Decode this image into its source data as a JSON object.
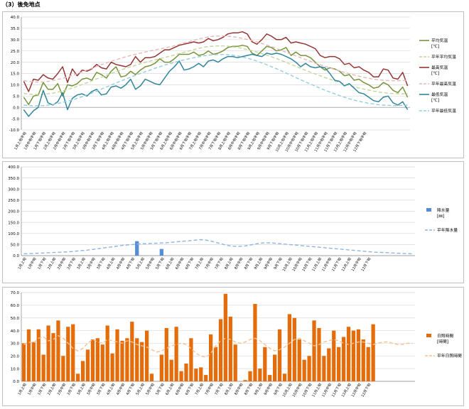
{
  "page": {
    "heading": "（3）後免地点"
  },
  "colors": {
    "avg": "#77933c",
    "avg_normal": "#c3d69b",
    "max": "#943634",
    "max_normal": "#e6b9b8",
    "min": "#31859c",
    "min_normal": "#93cddd",
    "precip_bar": "#558ed5",
    "precip_normal": "#8eb4e3",
    "sun_bar": "#e46c0a",
    "sun_normal": "#fac090",
    "grid": "#d9d9d9"
  },
  "periods": [
    "1月上旬",
    "1月中旬",
    "1月下旬",
    "2月上旬",
    "2月中旬",
    "2月下旬",
    "3月上旬",
    "3月中旬",
    "3月下旬",
    "4月上旬",
    "4月中旬",
    "4月下旬",
    "5月上旬",
    "5月中旬",
    "5月下旬",
    "6月上旬",
    "6月中旬",
    "6月下旬",
    "7月上旬",
    "7月中旬",
    "7月下旬",
    "8月上旬",
    "8月中旬",
    "8月下旬",
    "9月上旬",
    "9月中旬",
    "9月下旬",
    "10月上旬",
    "10月中旬",
    "10月下旬",
    "11月上旬",
    "11月中旬",
    "11月下旬",
    "12月上旬",
    "12月中旬",
    "12月下旬"
  ],
  "chart_data": [
    {
      "type": "line",
      "x_unit": "半旬",
      "ylim": [
        -10,
        40
      ],
      "yticks": [
        -10,
        -5,
        0,
        5,
        10,
        15,
        20,
        25,
        30,
        35,
        40
      ],
      "ytick_labels": [
        "-10.0",
        "-5.0",
        "0.0",
        "5.0",
        "10.0",
        "15.0",
        "20.0",
        "25.0",
        "30.0",
        "35.0",
        "40.0"
      ],
      "grid": true,
      "legend_position": "right",
      "series": [
        {
          "name": "平均気温",
          "unit": "[℃]",
          "style": "solid",
          "color_key": "avg",
          "values": [
            4.5,
            1.2,
            5.0,
            5.5,
            11.0,
            8.0,
            8.0,
            10.5,
            5.0,
            10.0,
            9.5,
            10.5,
            12.5,
            13.0,
            12.0,
            15.5,
            14.5,
            13.0,
            16.0,
            18.0,
            13.5,
            14.0,
            16.0,
            14.5,
            16.5,
            18.0,
            18.5,
            19.5,
            21.5,
            20.0,
            20.0,
            21.5,
            23.5,
            23.5,
            23.5,
            24.5,
            23.0,
            23.5,
            25.0,
            23.5,
            24.0,
            25.0,
            26.5,
            27.0,
            27.0,
            27.5,
            27.0,
            24.0,
            23.0,
            25.0,
            27.0,
            26.5,
            25.0,
            25.5,
            26.5,
            23.0,
            24.5,
            23.0,
            23.0,
            22.0,
            20.0,
            18.0,
            16.5,
            17.5,
            17.0,
            16.0,
            14.0,
            14.5,
            12.0,
            12.5,
            11.0,
            10.0,
            8.5,
            9.0,
            11.0,
            10.0,
            7.5,
            6.5,
            9.0,
            4.5
          ]
        },
        {
          "name": "平年平均気温",
          "style": "dashed",
          "color_key": "avg_normal",
          "values": [
            6.2,
            5.9,
            5.7,
            5.7,
            5.8,
            6.0,
            6.3,
            6.8,
            7.3,
            7.9,
            8.6,
            9.3,
            10.1,
            10.9,
            11.7,
            12.6,
            13.4,
            14.2,
            15.0,
            15.8,
            16.5,
            17.3,
            18.0,
            18.6,
            19.3,
            19.9,
            20.5,
            21.0,
            21.6,
            22.1,
            22.6,
            23.2,
            23.8,
            24.4,
            25.0,
            25.6,
            26.1,
            26.6,
            26.9,
            27.1,
            27.2,
            27.2,
            27.1,
            26.8,
            26.5,
            26.1,
            25.6,
            25.1,
            24.5,
            23.8,
            23.1,
            22.4,
            21.6,
            20.8,
            19.9,
            19.0,
            18.2,
            17.3,
            16.4,
            15.6,
            14.8,
            14.0,
            13.2,
            12.5,
            11.7,
            11.0,
            10.4,
            9.7,
            9.1,
            8.6,
            8.1,
            7.6,
            7.2,
            6.8,
            6.5,
            6.3,
            6.1,
            6.0,
            6.0,
            6.1
          ]
        },
        {
          "name": "最高気温",
          "unit": "[℃]",
          "style": "solid",
          "color_key": "max",
          "values": [
            11.5,
            7.0,
            12.5,
            12.0,
            14.5,
            13.0,
            12.5,
            15.0,
            18.0,
            11.0,
            17.0,
            14.0,
            16.5,
            16.0,
            17.0,
            19.0,
            17.5,
            17.0,
            20.0,
            19.0,
            18.5,
            18.0,
            19.0,
            22.5,
            20.0,
            22.0,
            22.0,
            22.5,
            24.0,
            25.5,
            25.5,
            26.5,
            27.5,
            28.0,
            28.5,
            29.0,
            28.5,
            29.0,
            30.5,
            29.5,
            30.0,
            31.0,
            32.5,
            33.0,
            33.0,
            33.5,
            32.5,
            29.0,
            28.0,
            30.0,
            32.5,
            31.5,
            30.0,
            30.0,
            31.0,
            28.5,
            29.0,
            28.5,
            28.0,
            27.0,
            26.0,
            23.0,
            22.0,
            22.5,
            22.5,
            21.5,
            19.0,
            19.5,
            17.5,
            18.0,
            16.5,
            15.5,
            13.5,
            13.5,
            17.0,
            16.5,
            13.0,
            12.5,
            15.5,
            9.5
          ]
        },
        {
          "name": "平年最高気温",
          "style": "dashed",
          "color_key": "max_normal",
          "values": [
            11.8,
            11.5,
            11.3,
            11.2,
            11.3,
            11.5,
            11.9,
            12.4,
            12.9,
            13.5,
            14.2,
            14.9,
            15.7,
            16.5,
            17.3,
            18.1,
            18.9,
            19.7,
            20.4,
            21.1,
            21.8,
            22.4,
            23.0,
            23.5,
            24.0,
            24.5,
            25.0,
            25.4,
            25.9,
            26.3,
            26.8,
            27.3,
            27.9,
            28.5,
            29.1,
            29.7,
            30.3,
            30.8,
            31.2,
            31.5,
            31.6,
            31.6,
            31.5,
            31.3,
            31.0,
            30.6,
            30.1,
            29.6,
            29.0,
            28.3,
            27.6,
            26.9,
            26.1,
            25.3,
            24.4,
            23.6,
            22.8,
            22.0,
            21.2,
            20.4,
            19.6,
            18.9,
            18.2,
            17.5,
            16.8,
            16.1,
            15.5,
            14.9,
            14.3,
            13.8,
            13.3,
            12.9,
            12.5,
            12.2,
            12.0,
            11.9,
            11.8,
            11.8,
            11.9,
            12.0
          ]
        },
        {
          "name": "最低気温",
          "unit": "[℃]",
          "style": "solid",
          "color_key": "min",
          "values": [
            -1.0,
            -4.0,
            -1.5,
            0.0,
            7.5,
            2.0,
            1.0,
            2.5,
            6.5,
            -1.0,
            4.0,
            5.5,
            6.0,
            5.0,
            7.0,
            8.0,
            5.5,
            6.0,
            9.0,
            9.5,
            8.5,
            10.0,
            12.5,
            8.0,
            9.5,
            12.5,
            11.5,
            10.5,
            10.0,
            13.0,
            16.0,
            18.0,
            20.5,
            16.5,
            17.0,
            18.0,
            19.5,
            18.0,
            20.5,
            21.0,
            20.0,
            21.5,
            22.5,
            22.5,
            22.0,
            22.5,
            23.0,
            23.5,
            23.0,
            22.5,
            24.0,
            23.5,
            24.0,
            23.5,
            22.5,
            21.5,
            20.0,
            18.0,
            19.5,
            18.0,
            17.5,
            18.0,
            17.5,
            15.0,
            12.0,
            11.5,
            9.5,
            10.5,
            8.5,
            6.5,
            6.0,
            4.5,
            3.0,
            2.5,
            4.5,
            5.0,
            2.0,
            1.0,
            2.5,
            -1.0
          ]
        },
        {
          "name": "平年最低気温",
          "style": "dashed",
          "color_key": "min_normal",
          "values": [
            1.0,
            0.8,
            0.7,
            0.7,
            0.8,
            1.0,
            1.3,
            1.7,
            2.2,
            2.7,
            3.3,
            4.0,
            4.7,
            5.5,
            6.3,
            7.2,
            8.1,
            9.0,
            9.9,
            10.8,
            11.7,
            12.5,
            13.4,
            14.2,
            15.0,
            15.8,
            16.5,
            17.3,
            18.0,
            18.7,
            19.3,
            19.9,
            20.5,
            21.0,
            21.5,
            22.0,
            22.4,
            22.8,
            23.1,
            23.3,
            23.4,
            23.4,
            23.3,
            23.1,
            22.8,
            22.3,
            21.8,
            21.2,
            20.5,
            19.7,
            18.9,
            18.0,
            17.1,
            16.2,
            15.2,
            14.2,
            13.2,
            12.2,
            11.3,
            10.3,
            9.4,
            8.5,
            7.6,
            6.8,
            6.0,
            5.2,
            4.5,
            3.8,
            3.2,
            2.7,
            2.2,
            1.8,
            1.5,
            1.2,
            1.0,
            0.9,
            0.8,
            0.8,
            0.9,
            1.0
          ]
        }
      ]
    },
    {
      "type": "bar",
      "ylim": [
        0,
        400
      ],
      "yticks": [
        0,
        50,
        100,
        150,
        200,
        250,
        300,
        350,
        400
      ],
      "ytick_labels": [
        "0.0",
        "50.0",
        "100.0",
        "150.0",
        "200.0",
        "250.0",
        "300.0",
        "350.0",
        "400.0"
      ],
      "grid": true,
      "legend_position": "right",
      "series": [
        {
          "name": "降水量",
          "unit": "[㎜]",
          "kind": "bar",
          "color_key": "precip_bar",
          "values": [
            0,
            0,
            0,
            0,
            0,
            0,
            0,
            0,
            0,
            0,
            0,
            0,
            0,
            0,
            0,
            0,
            0,
            0,
            0,
            0,
            0,
            0,
            0,
            65,
            0,
            0,
            0,
            0,
            30,
            0,
            0,
            0,
            0,
            0,
            0,
            0,
            0,
            0,
            0,
            0,
            0,
            0,
            0,
            0,
            0,
            0,
            0,
            0,
            0,
            0,
            0,
            0,
            0,
            0,
            0,
            0,
            0,
            0,
            0,
            0,
            0,
            0,
            0,
            0,
            0,
            0,
            0,
            0,
            0,
            0,
            0,
            0,
            0,
            0,
            0,
            0,
            0,
            0,
            0,
            0
          ]
        },
        {
          "name": "平年降水量",
          "kind": "line",
          "style": "dashed",
          "color_key": "precip_normal",
          "values": [
            8,
            9,
            10,
            11,
            12,
            13,
            14,
            15,
            16,
            17,
            19,
            21,
            23,
            25,
            28,
            31,
            34,
            37,
            40,
            43,
            46,
            48,
            50,
            52,
            53,
            54,
            55,
            56,
            57,
            58,
            60,
            62,
            64,
            66,
            68,
            70,
            72,
            70,
            66,
            60,
            54,
            48,
            44,
            42,
            42,
            44,
            48,
            52,
            56,
            58,
            58,
            56,
            54,
            52,
            50,
            48,
            46,
            44,
            42,
            40,
            38,
            36,
            34,
            32,
            30,
            28,
            26,
            24,
            22,
            20,
            18,
            16,
            15,
            14,
            13,
            12,
            11,
            10,
            9,
            8
          ]
        }
      ]
    },
    {
      "type": "bar",
      "ylim": [
        0,
        70
      ],
      "yticks": [
        0,
        10,
        20,
        30,
        40,
        50,
        60,
        70
      ],
      "ytick_labels": [
        "0.0",
        "10.0",
        "20.0",
        "30.0",
        "40.0",
        "50.0",
        "60.0",
        "70.0"
      ],
      "grid": true,
      "legend_position": "right",
      "series": [
        {
          "name": "日照時間",
          "unit": "[時間]",
          "kind": "bar",
          "color_key": "sun_bar",
          "values": [
            30,
            41,
            31,
            41,
            21,
            44,
            38,
            48,
            20,
            43,
            45,
            6,
            16,
            25,
            33,
            34,
            29,
            44,
            22,
            41,
            32,
            34,
            47,
            34,
            31,
            40,
            6,
            0,
            21,
            42,
            17,
            43,
            8,
            14,
            34,
            10,
            11,
            5,
            37,
            27,
            49,
            69,
            51,
            29,
            0,
            1,
            8,
            61,
            10,
            27,
            5,
            21,
            41,
            6,
            53,
            50,
            33,
            17,
            20,
            48,
            42,
            20,
            26,
            40,
            27,
            35,
            43,
            40,
            41,
            33,
            27,
            45,
            0,
            0,
            0,
            0,
            0,
            0,
            0,
            0
          ]
        },
        {
          "name": "平年日照時間",
          "kind": "line",
          "style": "dashed",
          "color_key": "sun_normal",
          "values": [
            29,
            31,
            30,
            34,
            35,
            32,
            33,
            36,
            34,
            30,
            26,
            24,
            26,
            30,
            33,
            31,
            30,
            33,
            32,
            31,
            30,
            32,
            31,
            29,
            28,
            27,
            25,
            23,
            24,
            26,
            28,
            29,
            30,
            29,
            26,
            22,
            20,
            19,
            22,
            28,
            32,
            34,
            33,
            31,
            30,
            31,
            33,
            34,
            32,
            29,
            26,
            24,
            25,
            27,
            30,
            33,
            34,
            32,
            30,
            28,
            29,
            31,
            32,
            33,
            32,
            30,
            29,
            30,
            31,
            31,
            30,
            29,
            30,
            31,
            31,
            30,
            29,
            29,
            30,
            30
          ]
        }
      ]
    }
  ]
}
